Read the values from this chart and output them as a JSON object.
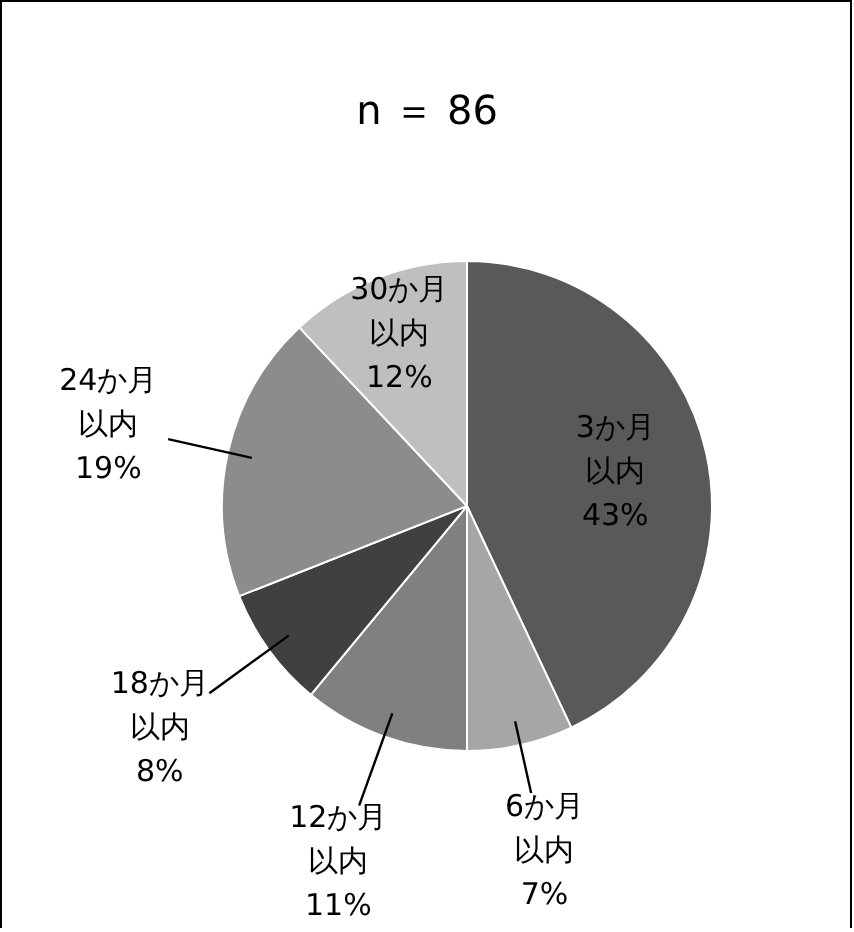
{
  "chart_data": {
    "type": "pie",
    "title": "n ＝ 86",
    "categories": [
      "3か月以内",
      "6か月以内",
      "12か月以内",
      "18か月以内",
      "24か月以内",
      "30か月以内"
    ],
    "values": [
      43,
      7,
      11,
      8,
      19,
      12
    ],
    "value_labels": [
      "43%",
      "7%",
      "11%",
      "8%",
      "19%",
      "12%"
    ],
    "colors": [
      "#595959",
      "#a6a6a6",
      "#808080",
      "#404040",
      "#8c8c8c",
      "#bfbfbf"
    ],
    "legend": false
  }
}
